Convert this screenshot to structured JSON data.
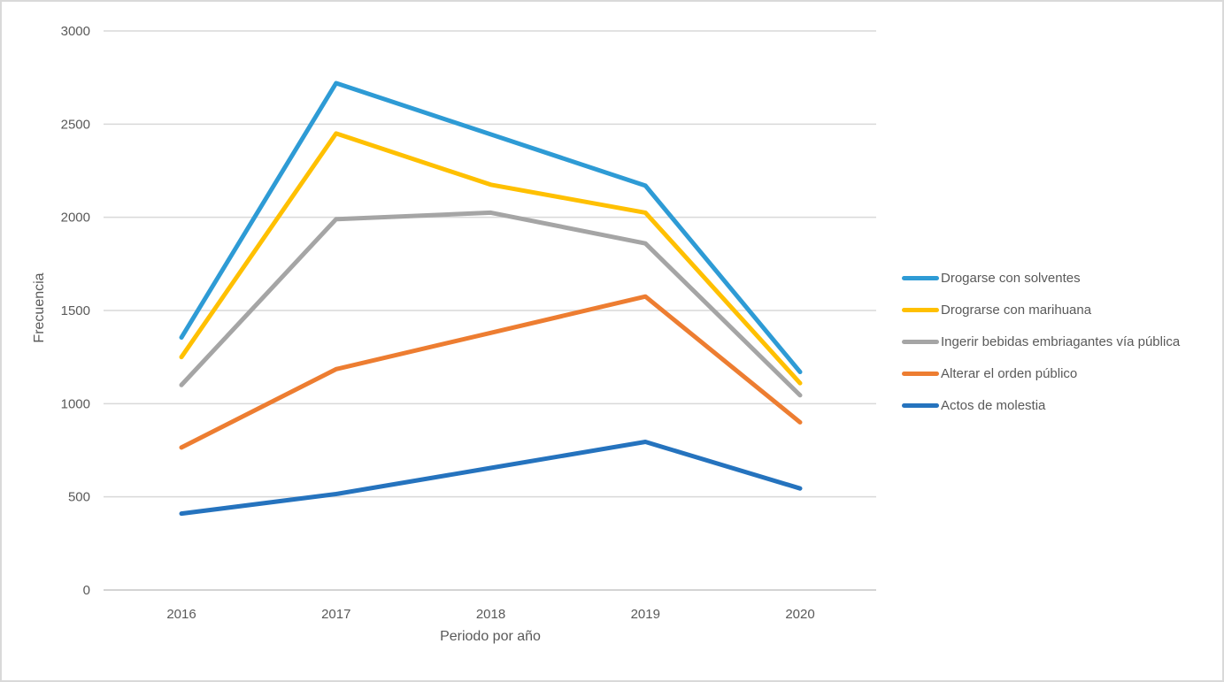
{
  "chart_data": {
    "type": "line",
    "title": "",
    "xlabel": "Periodo por año",
    "ylabel": "Frecuencia",
    "categories": [
      "2016",
      "2017",
      "2018",
      "2019",
      "2020"
    ],
    "yticks": [
      0,
      500,
      1000,
      1500,
      2000,
      2500,
      3000
    ],
    "ylim": [
      0,
      3000
    ],
    "grid": "horizontal",
    "legend_position": "right",
    "series": [
      {
        "name": "Drogarse con solventes",
        "color": "#2E9BD5",
        "values": [
          1355,
          2720,
          2445,
          2170,
          1170
        ]
      },
      {
        "name": "Drograrse con marihuana",
        "color": "#FFC000",
        "values": [
          1250,
          2450,
          2175,
          2025,
          1110
        ]
      },
      {
        "name": "Ingerir bebidas embriagantes vía pública",
        "color": "#A5A5A5",
        "values": [
          1100,
          1990,
          2025,
          1860,
          1045
        ]
      },
      {
        "name": "Alterar el orden público",
        "color": "#ED7D31",
        "values": [
          765,
          1185,
          1380,
          1575,
          900
        ]
      },
      {
        "name": "Actos de molestia",
        "color": "#2573BE",
        "values": [
          410,
          515,
          655,
          795,
          545
        ]
      }
    ],
    "style": {
      "gridline_color": "#D9D9D9",
      "axis_line_color": "#C6C6C6",
      "text_color": "#595959",
      "background_color": "#FFFFFF",
      "border_color": "#D9D9D9"
    }
  }
}
